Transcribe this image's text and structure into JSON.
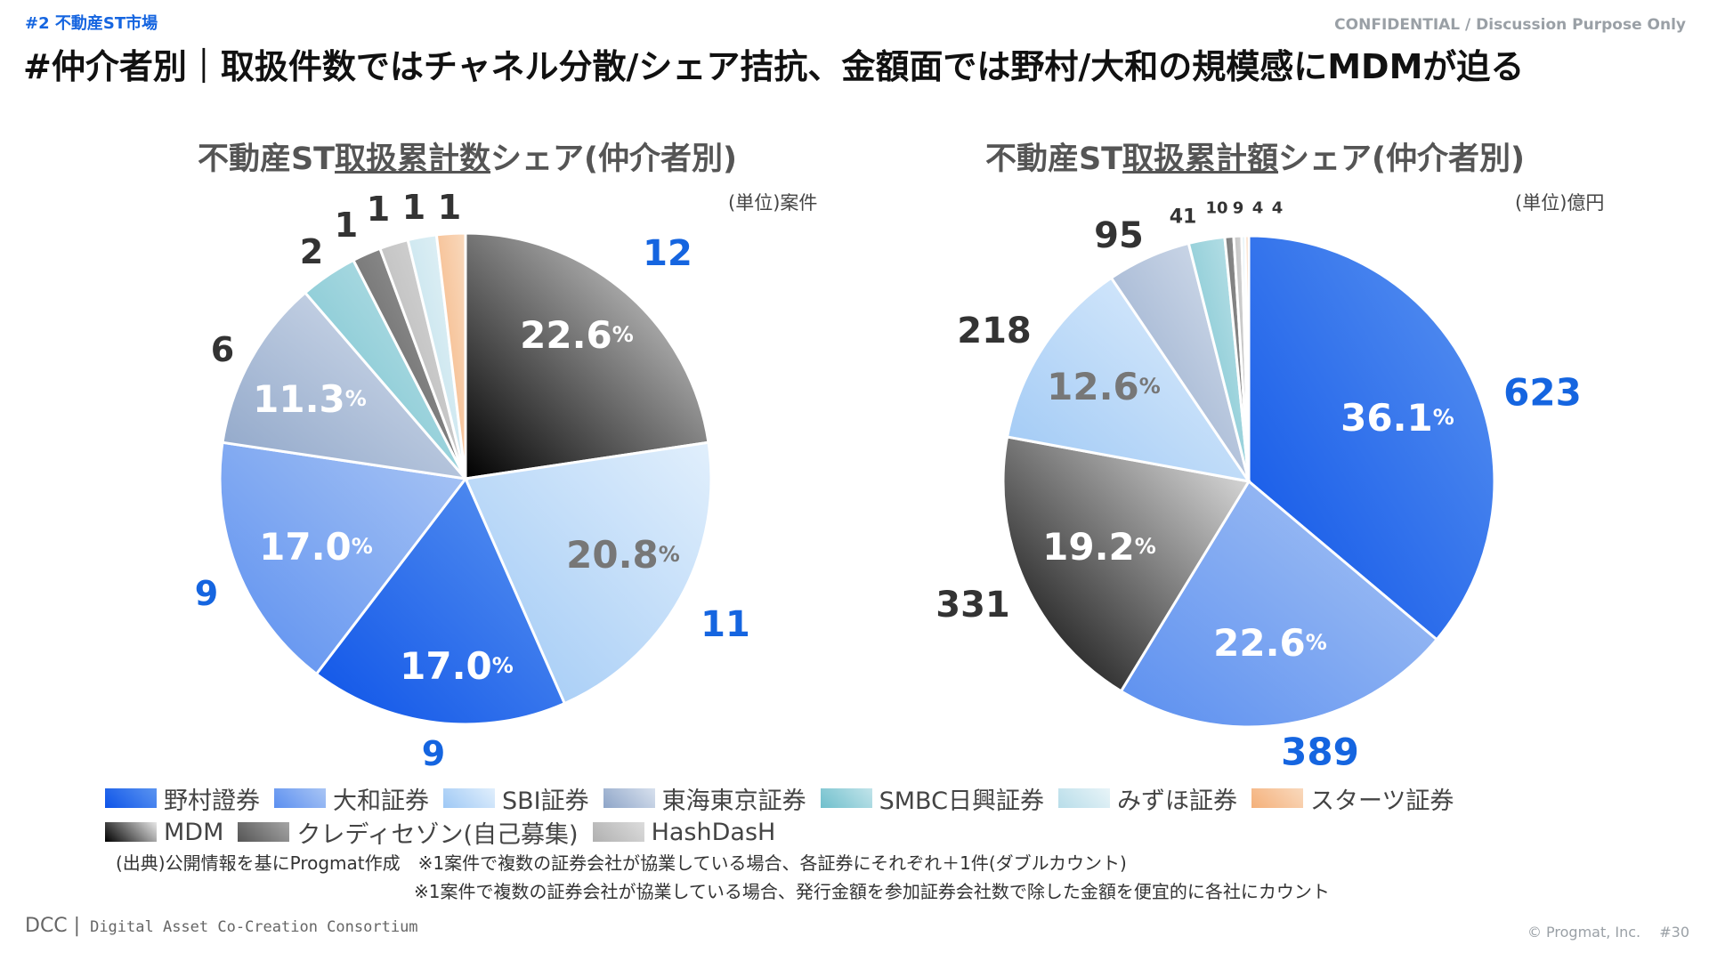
{
  "header": {
    "section_tag": "#2 不動産ST市場",
    "confidential": "CONFIDENTIAL / Discussion Purpose Only",
    "headline": "#仲介者別｜取扱件数ではチャネル分散/シェア拮抗、金額面では野村/大和の規模感にMDMが迫る"
  },
  "legend": {
    "row1": [
      "野村證券",
      "大和証券",
      "SBI証券",
      "東海東京証券",
      "SMBC日興証券",
      "みずほ証券",
      "スターツ証券"
    ],
    "row2": [
      "MDM",
      "クレディセゾン(自己募集)",
      "HashDasH"
    ]
  },
  "colors": {
    "野村證券": "#1a6cf0",
    "大和証券": "#6f9ef2",
    "SBI証券": "#a9cef7",
    "東海東京証券": "#9eb2cf",
    "SMBC日興証券": "#8ecfd8",
    "みずほ証券": "#c8e6ef",
    "スターツ証券": "#f6c49a",
    "MDM": "#111111",
    "クレディセゾン(自己募集)": "#6e6e6e",
    "HashDasH": "#bdbdbd"
  },
  "notes": {
    "source": "(出典)公開情報を基にProgmat作成　※1案件で複数の証券会社が協業している場合、各証券にそれぞれ＋1件(ダブルカウント)",
    "note2": "※1案件で複数の証券会社が協業している場合、発行金額を参加証券会社数で除した金額を便宜的に各社にカウント"
  },
  "footer": {
    "logo": "DCC",
    "logo_sub": "Digital Asset Co-Creation Consortium",
    "copyright": "© Progmat, Inc.　 #30"
  },
  "chart_data": [
    {
      "type": "pie",
      "title_parts": [
        "不動産ST",
        "取扱累計数",
        "シェア(仲介者別)"
      ],
      "unit": "(単位)案件",
      "slices": [
        {
          "name": "MDM",
          "value": 12,
          "label": "12",
          "pct": "22.6",
          "pct_color": "#ffffff",
          "value_color": "#1565e0"
        },
        {
          "name": "SBI証券",
          "value": 11,
          "label": "11",
          "pct": "20.8",
          "pct_color": "#777777",
          "value_color": "#1565e0"
        },
        {
          "name": "野村證券",
          "value": 9,
          "label": "9",
          "pct": "17.0",
          "pct_color": "#ffffff",
          "value_color": "#1565e0"
        },
        {
          "name": "大和証券",
          "value": 9,
          "label": "9",
          "pct": "17.0",
          "pct_color": "#ffffff",
          "value_color": "#1565e0"
        },
        {
          "name": "東海東京証券",
          "value": 6,
          "label": "6",
          "pct": "11.3",
          "pct_color": "#ffffff",
          "value_color": "#333333"
        },
        {
          "name": "SMBC日興証券",
          "value": 2,
          "label": "2",
          "pct": "",
          "value_color": "#333333"
        },
        {
          "name": "クレディセゾン(自己募集)",
          "value": 1,
          "label": "1",
          "pct": "",
          "value_color": "#333333"
        },
        {
          "name": "HashDasH",
          "value": 1,
          "label": "1",
          "pct": "",
          "value_color": "#333333"
        },
        {
          "name": "みずほ証券",
          "value": 1,
          "label": "1",
          "pct": "",
          "value_color": "#333333"
        },
        {
          "name": "スターツ証券",
          "value": 1,
          "label": "1",
          "pct": "",
          "value_color": "#333333"
        }
      ]
    },
    {
      "type": "pie",
      "title_parts": [
        "不動産ST",
        "取扱累計額",
        "シェア(仲介者別)"
      ],
      "unit": "(単位)億円",
      "slices": [
        {
          "name": "野村證券",
          "value": 623,
          "label": "623",
          "pct": "36.1",
          "pct_color": "#ffffff",
          "value_color": "#1565e0"
        },
        {
          "name": "大和証券",
          "value": 389,
          "label": "389",
          "pct": "22.6",
          "pct_color": "#ffffff",
          "value_color": "#1565e0"
        },
        {
          "name": "MDM",
          "value": 331,
          "label": "331",
          "pct": "19.2",
          "pct_color": "#ffffff",
          "value_color": "#333333"
        },
        {
          "name": "SBI証券",
          "value": 218,
          "label": "218",
          "pct": "12.6",
          "pct_color": "#777777",
          "value_color": "#333333"
        },
        {
          "name": "東海東京証券",
          "value": 95,
          "label": "95",
          "pct": "",
          "value_color": "#333333"
        },
        {
          "name": "SMBC日興証券",
          "value": 41,
          "label": "41",
          "pct": "",
          "value_color": "#333333"
        },
        {
          "name": "クレディセゾン(自己募集)",
          "value": 10,
          "label": "10",
          "pct": "",
          "value_color": "#333333"
        },
        {
          "name": "HashDasH",
          "value": 9,
          "label": "9",
          "pct": "",
          "value_color": "#333333"
        },
        {
          "name": "みずほ証券",
          "value": 4,
          "label": "4",
          "pct": "",
          "value_color": "#333333"
        },
        {
          "name": "スターツ証券",
          "value": 4,
          "label": "4",
          "pct": "",
          "value_color": "#333333"
        }
      ]
    }
  ]
}
